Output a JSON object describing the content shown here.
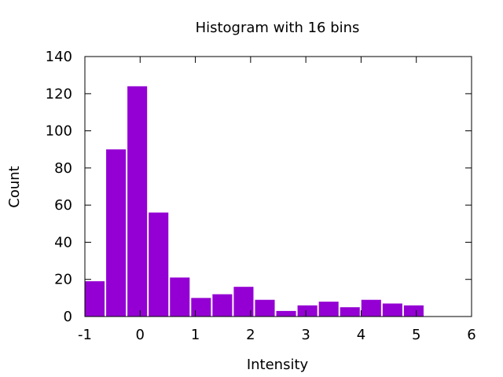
{
  "chart_data": {
    "type": "bar",
    "title": "Histogram with 16 bins",
    "xlabel": "Intensity",
    "ylabel": "Count",
    "xlim": [
      -1,
      6
    ],
    "ylim": [
      0,
      140
    ],
    "x_ticks": [
      "-1",
      "0",
      "1",
      "2",
      "3",
      "4",
      "5",
      "6"
    ],
    "y_ticks": [
      "0",
      "20",
      "40",
      "60",
      "80",
      "100",
      "120",
      "140"
    ],
    "bin_width": 0.385,
    "bins": [
      {
        "x_start": -1.0,
        "x_end": -0.615,
        "value": 19
      },
      {
        "x_start": -0.615,
        "x_end": -0.23,
        "value": 90
      },
      {
        "x_start": -0.23,
        "x_end": 0.155,
        "value": 124
      },
      {
        "x_start": 0.155,
        "x_end": 0.54,
        "value": 56
      },
      {
        "x_start": 0.54,
        "x_end": 0.925,
        "value": 21
      },
      {
        "x_start": 0.925,
        "x_end": 1.31,
        "value": 10
      },
      {
        "x_start": 1.31,
        "x_end": 1.695,
        "value": 12
      },
      {
        "x_start": 1.695,
        "x_end": 2.08,
        "value": 16
      },
      {
        "x_start": 2.08,
        "x_end": 2.465,
        "value": 9
      },
      {
        "x_start": 2.465,
        "x_end": 2.85,
        "value": 3
      },
      {
        "x_start": 2.85,
        "x_end": 3.235,
        "value": 6
      },
      {
        "x_start": 3.235,
        "x_end": 3.62,
        "value": 8
      },
      {
        "x_start": 3.62,
        "x_end": 4.005,
        "value": 5
      },
      {
        "x_start": 4.005,
        "x_end": 4.39,
        "value": 9
      },
      {
        "x_start": 4.39,
        "x_end": 4.775,
        "value": 7
      },
      {
        "x_start": 4.775,
        "x_end": 5.16,
        "value": 6
      }
    ],
    "bar_color": "#9400d3",
    "grid": false,
    "legend": "none"
  }
}
